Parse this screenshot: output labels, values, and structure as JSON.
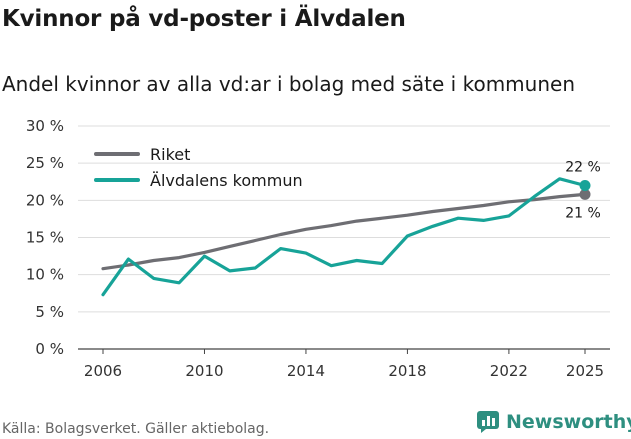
{
  "chart_data": {
    "type": "line",
    "title": "Kvinnor på vd-poster i Älvdalen",
    "subtitle": "Andel kvinnor av alla vd:ar i bolag med säte i kommunen",
    "xlabel": "",
    "ylabel": "",
    "ylim": [
      0,
      30
    ],
    "xlim": [
      2006,
      2025
    ],
    "y_ticks": [
      0,
      5,
      10,
      15,
      20,
      25,
      30
    ],
    "y_tick_labels": [
      "0 %",
      "5 %",
      "10 %",
      "15 %",
      "20 %",
      "25 %",
      "30 %"
    ],
    "x_ticks": [
      2006,
      2010,
      2014,
      2018,
      2022,
      2025
    ],
    "x_tick_labels": [
      "2006",
      "2010",
      "2014",
      "2018",
      "2022",
      "2025"
    ],
    "x": [
      2006,
      2007,
      2008,
      2009,
      2010,
      2011,
      2012,
      2013,
      2014,
      2015,
      2016,
      2017,
      2018,
      2019,
      2020,
      2021,
      2022,
      2023,
      2024,
      2025
    ],
    "series": [
      {
        "name": "Riket",
        "color": "#6e6e73",
        "values": [
          10.8,
          11.3,
          11.9,
          12.3,
          13.0,
          13.8,
          14.6,
          15.4,
          16.1,
          16.6,
          17.2,
          17.6,
          18.0,
          18.5,
          18.9,
          19.3,
          19.8,
          20.1,
          20.5,
          20.8
        ],
        "end_label": "21 %"
      },
      {
        "name": "Älvdalens kommun",
        "color": "#17a398",
        "values": [
          7.3,
          12.1,
          9.5,
          8.9,
          12.5,
          10.5,
          10.9,
          13.5,
          12.9,
          11.2,
          11.9,
          11.5,
          15.2,
          16.5,
          17.6,
          17.3,
          17.9,
          20.5,
          22.9,
          22.0
        ],
        "end_label": "22 %"
      }
    ],
    "grid": true,
    "legend_position": "top-left"
  },
  "footer": {
    "source": "Källa: Bolagsverket. Gäller aktiebolag.",
    "brand": "Newsworthy",
    "brand_color": "#2e8f80"
  }
}
